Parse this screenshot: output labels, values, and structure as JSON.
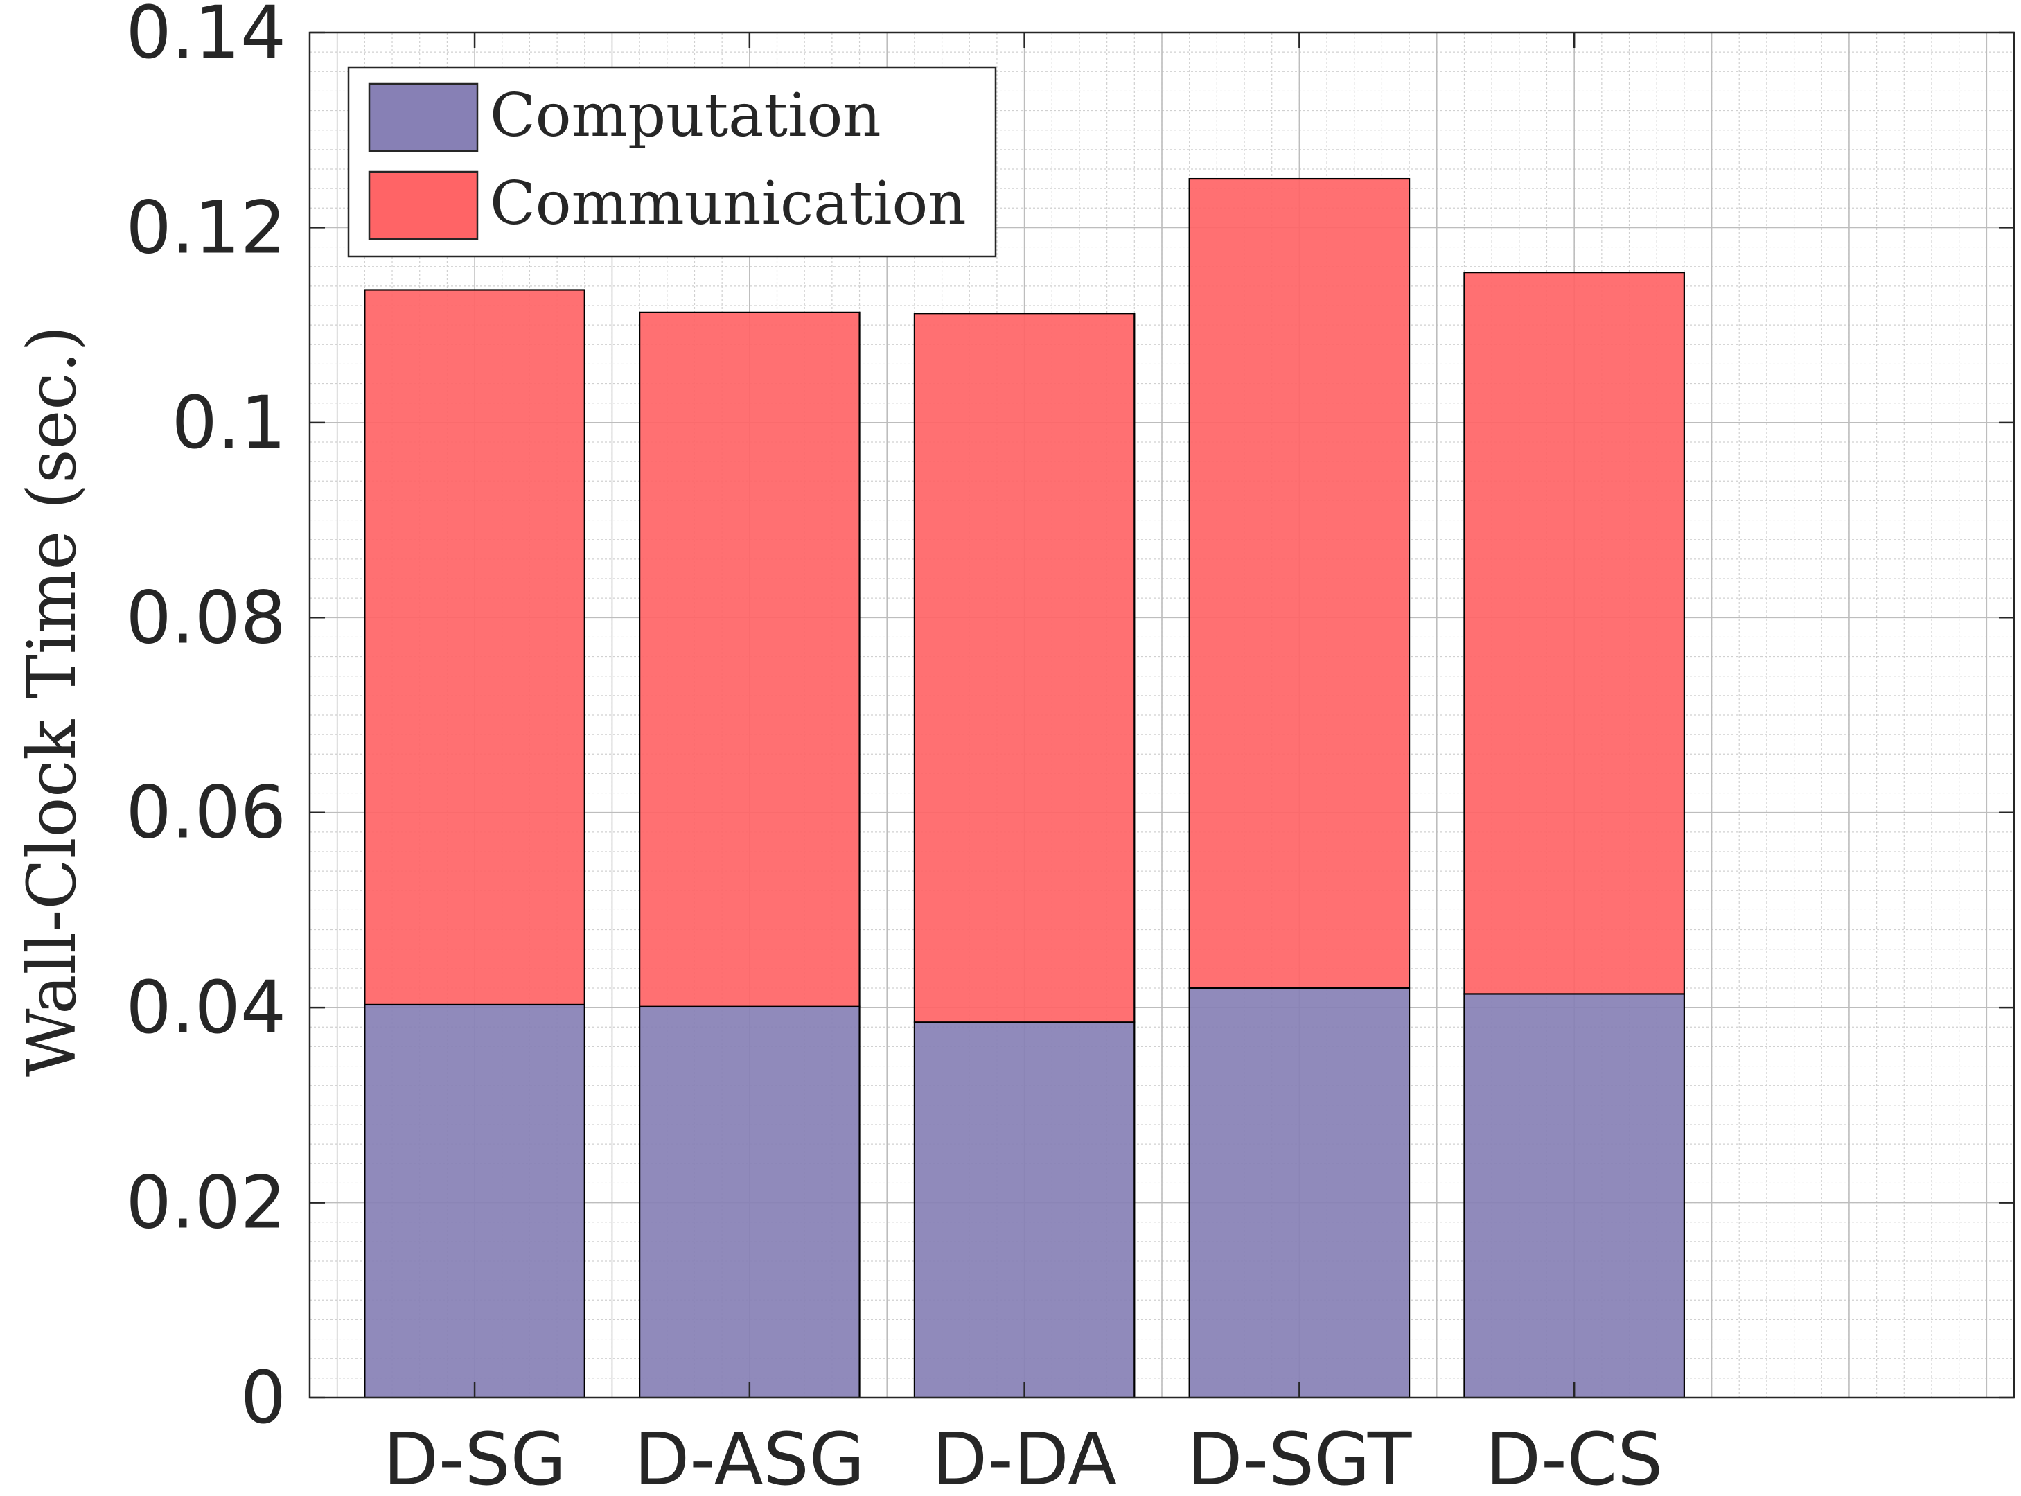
{
  "chart_data": {
    "type": "bar",
    "stacked": true,
    "title": "",
    "xlabel": "",
    "ylabel": "Wall-Clock Time (sec.)",
    "ylim": [
      0,
      0.14
    ],
    "yticks": [
      0,
      0.02,
      0.04,
      0.06,
      0.08,
      0.1,
      0.12,
      0.14
    ],
    "ytick_labels": [
      "0",
      "0.02",
      "0.04",
      "0.06",
      "0.08",
      "0.1",
      "0.12",
      "0.14"
    ],
    "categories": [
      "D-SG",
      "D-ASG",
      "D-DA",
      "D-SGT",
      "D-CS"
    ],
    "grid": true,
    "minor_grid": true,
    "legend_position": "top-left",
    "series": [
      {
        "name": "Computation",
        "color": "#8780B5",
        "values": [
          0.0403,
          0.0401,
          0.0385,
          0.042,
          0.0414
        ]
      },
      {
        "name": "Communication",
        "color": "#FF6466",
        "values": [
          0.0733,
          0.0712,
          0.0727,
          0.083,
          0.074
        ]
      }
    ]
  }
}
